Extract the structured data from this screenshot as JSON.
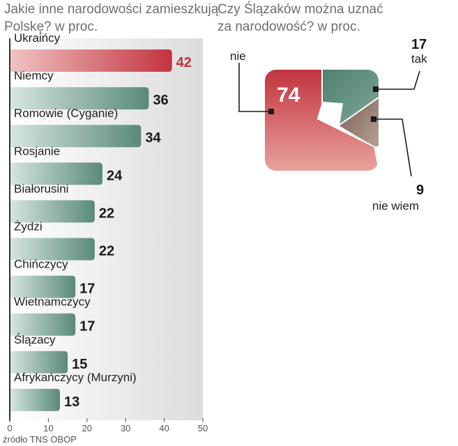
{
  "colors": {
    "highlight": "#c2333f",
    "highlight_light": "#e0888c",
    "bar": "#5a8a78",
    "bar_light": "#c9ddd5",
    "neutral": "#8a6e5e",
    "grid_bg": "#e6e6e6",
    "axis": "#333333"
  },
  "source": "źródło TNS OBOP",
  "chart_data": [
    {
      "type": "bar",
      "orientation": "horizontal",
      "title": "Jakie inne narodowości zamieszkują Polskę? w proc.",
      "title_lines": [
        "Jakie inne narodowości zamieszkują",
        "Polskę? w proc."
      ],
      "categories": [
        "Ukraińcy",
        "Niemcy",
        "Romowie (Cyganie)",
        "Rosjanie",
        "Białorusini",
        "Żydzi",
        "Chińczycy",
        "Wietnamczycy",
        "Ślązacy",
        "Afrykańczycy (Murzyni)"
      ],
      "values": [
        42,
        36,
        34,
        24,
        22,
        22,
        17,
        17,
        15,
        13
      ],
      "highlight_index": 0,
      "xlim": [
        0,
        50
      ],
      "xticks": [
        0,
        10,
        20,
        30,
        40,
        50
      ],
      "xlabel": "",
      "ylabel": ""
    },
    {
      "type": "pie",
      "title": "Czy Ślązaków można uznać za narodowość? w proc.",
      "title_lines": [
        "Czy Ślązaków można uznać",
        "za narodowość? w proc."
      ],
      "slices": [
        {
          "label": "nie",
          "value": 74,
          "color_key": "highlight"
        },
        {
          "label": "tak",
          "value": 17,
          "color_key": "bar"
        },
        {
          "label": "nie wiem",
          "value": 9,
          "color_key": "neutral"
        }
      ]
    }
  ]
}
